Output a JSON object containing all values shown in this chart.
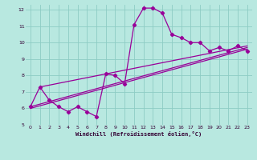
{
  "bg_color": "#b8e8e0",
  "grid_color": "#8dccc4",
  "line_color": "#990099",
  "xlim": [
    -0.5,
    23.5
  ],
  "ylim": [
    5,
    12.3
  ],
  "xticks": [
    0,
    1,
    2,
    3,
    4,
    5,
    6,
    7,
    8,
    9,
    10,
    11,
    12,
    13,
    14,
    15,
    16,
    17,
    18,
    19,
    20,
    21,
    22,
    23
  ],
  "yticks": [
    5,
    6,
    7,
    8,
    9,
    10,
    11,
    12
  ],
  "xlabel": "Windchill (Refroidissement éolien,°C)",
  "line1_x": [
    0,
    1,
    2,
    3,
    4,
    5,
    6,
    7,
    8,
    9,
    10,
    11,
    12,
    13,
    14,
    15,
    16,
    17,
    18,
    19,
    20,
    21,
    22,
    23
  ],
  "line1_y": [
    6.1,
    7.3,
    6.5,
    6.1,
    5.8,
    6.1,
    5.8,
    5.5,
    8.1,
    8.0,
    7.5,
    11.1,
    12.1,
    12.1,
    11.8,
    10.5,
    10.3,
    10.0,
    10.0,
    9.5,
    9.7,
    9.5,
    9.8,
    9.5
  ],
  "line2_x": [
    0,
    23
  ],
  "line2_y": [
    6.1,
    9.7
  ],
  "line3_x": [
    1,
    23
  ],
  "line3_y": [
    7.3,
    9.8
  ],
  "line4_x": [
    0,
    23
  ],
  "line4_y": [
    6.0,
    9.6
  ]
}
